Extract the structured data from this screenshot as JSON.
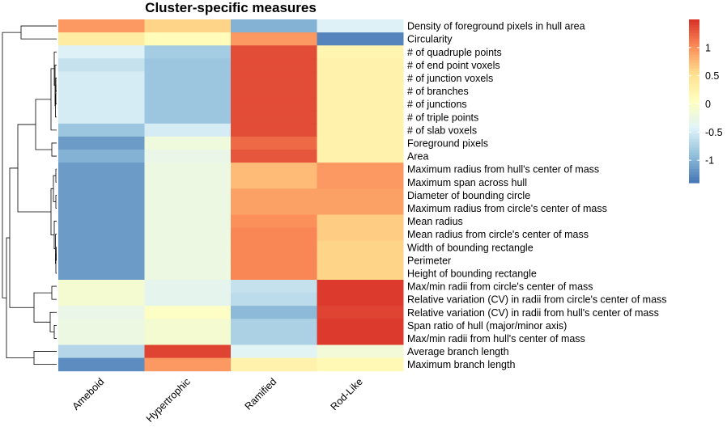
{
  "chart_data": {
    "type": "heatmap",
    "title": "Cluster-specific measures",
    "columns": [
      "Ameboid",
      "Hypertrophic",
      "Ramified",
      "Rod-Like"
    ],
    "rows": [
      "Density of foreground pixels in hull area",
      "Circularity",
      "# of quadruple points",
      "# of end point voxels",
      "# of junction voxels",
      "# of branches",
      "# of junctions",
      "# of triple points",
      "# of slab voxels",
      "Foreground pixels",
      "Area",
      "Maximum radius from hull's center of mass",
      "Maximum span across hull",
      "Diameter of bounding circle",
      "Maximum radius from circle's center of mass",
      "Mean radius",
      "Mean radius from circle's center of mass",
      "Width of bounding rectangle",
      "Perimeter",
      "Height of bounding rectangle",
      "Max/min radii from circle's center of mass",
      "Relative variation (CV) in radii from circle's center of mass",
      "Relative variation (CV) in radii from hull's center of mass",
      "Span ratio of hull (major/minor axis)",
      "Max/min radii from hull's center of mass",
      "Average branch length",
      "Maximum branch length"
    ],
    "values": [
      [
        0.95,
        0.6,
        -1.0,
        -0.45
      ],
      [
        0.35,
        0.1,
        0.95,
        -1.3
      ],
      [
        -0.45,
        -0.8,
        1.35,
        0.2
      ],
      [
        -0.6,
        -0.85,
        1.35,
        0.25
      ],
      [
        -0.5,
        -0.85,
        1.35,
        0.25
      ],
      [
        -0.5,
        -0.85,
        1.35,
        0.25
      ],
      [
        -0.5,
        -0.85,
        1.35,
        0.25
      ],
      [
        -0.5,
        -0.85,
        1.35,
        0.25
      ],
      [
        -0.85,
        -0.5,
        1.35,
        0.25
      ],
      [
        -1.15,
        -0.2,
        1.2,
        0.25
      ],
      [
        -1.0,
        -0.3,
        1.3,
        0.25
      ],
      [
        -1.15,
        -0.25,
        0.75,
        0.95
      ],
      [
        -1.15,
        -0.25,
        0.75,
        0.95
      ],
      [
        -1.15,
        -0.25,
        0.9,
        0.9
      ],
      [
        -1.15,
        -0.25,
        0.9,
        0.9
      ],
      [
        -1.15,
        -0.25,
        1.0,
        0.65
      ],
      [
        -1.15,
        -0.25,
        1.05,
        0.65
      ],
      [
        -1.15,
        -0.25,
        1.05,
        0.6
      ],
      [
        -1.15,
        -0.25,
        1.05,
        0.6
      ],
      [
        -1.15,
        -0.25,
        1.05,
        0.6
      ],
      [
        -0.1,
        -0.35,
        -0.6,
        1.45
      ],
      [
        -0.1,
        -0.35,
        -0.65,
        1.45
      ],
      [
        -0.3,
        0.0,
        -0.95,
        1.4
      ],
      [
        -0.25,
        -0.1,
        -0.75,
        1.45
      ],
      [
        -0.25,
        -0.1,
        -0.75,
        1.45
      ],
      [
        -0.7,
        1.4,
        -0.4,
        -0.15
      ],
      [
        -1.25,
        0.95,
        0.25,
        0.15
      ]
    ],
    "legend": {
      "position": "top-right",
      "ticks": [
        1,
        0.5,
        0,
        -0.5,
        -1
      ],
      "tick_labels": [
        "1",
        "0.5",
        "0",
        "-0.5",
        "-1"
      ],
      "range": [
        -1.4,
        1.5
      ],
      "colors": [
        "#4575b4",
        "#91bfdb",
        "#e0f3f8",
        "#ffffbf",
        "#fee090",
        "#fc8d59",
        "#d73027"
      ]
    },
    "row_dendrogram": true,
    "column_dendrogram": false
  }
}
